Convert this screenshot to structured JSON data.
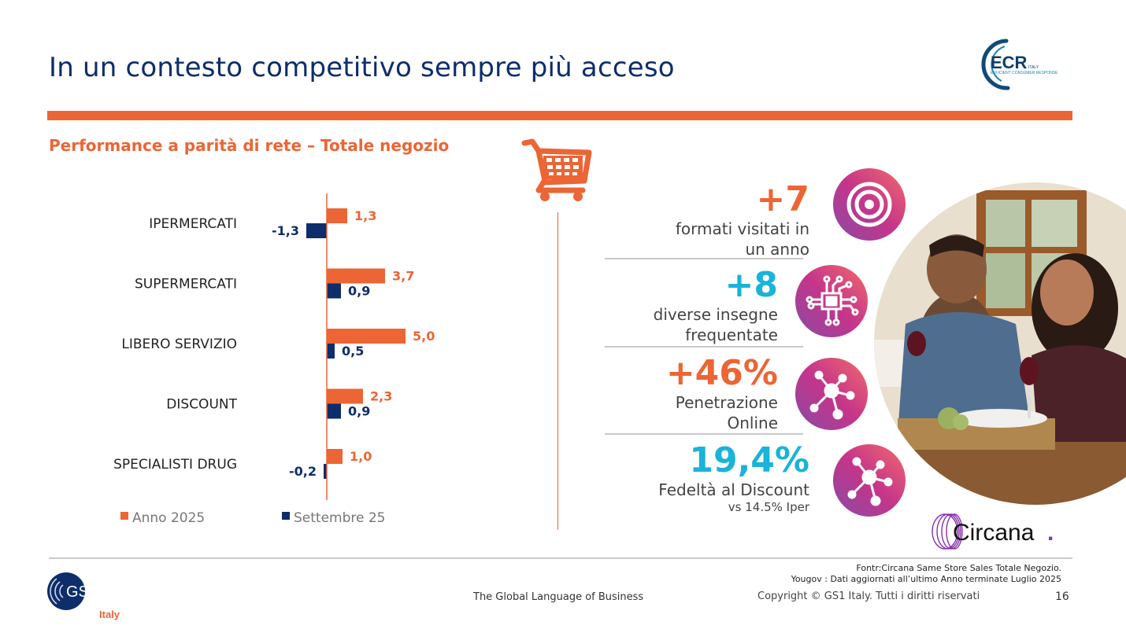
{
  "header": {
    "title": "In un contesto competitivo sempre più acceso",
    "logo_ecr": {
      "main": "ECR",
      "country": "ITALY",
      "tagline": "EFFICIENT CONSUMER RESPONSE"
    }
  },
  "subtitle": "Performance a parità di rete – Totale negozio",
  "colors": {
    "orange": "#ec6535",
    "navy": "#0d2d6b",
    "cyan": "#1ab3d9",
    "gray": "#c9c9c9"
  },
  "chart_data": {
    "type": "bar",
    "orientation": "horizontal",
    "title": "Performance a parità di rete – Totale negozio",
    "categories": [
      "IPERMERCATI",
      "SUPERMERCATI",
      "LIBERO SERVIZIO",
      "DISCOUNT",
      "SPECIALISTI DRUG"
    ],
    "series": [
      {
        "name": "Anno 2025",
        "color": "#ec6535",
        "values": [
          1.3,
          3.7,
          5.0,
          2.3,
          1.0
        ],
        "labels": [
          "1,3",
          "3,7",
          "5,0",
          "2,3",
          "1,0"
        ]
      },
      {
        "name": "Settembre 25",
        "color": "#0d2d6b",
        "values": [
          -1.3,
          0.9,
          0.5,
          0.9,
          -0.2
        ],
        "labels": [
          "-1,3",
          "0,9",
          "0,5",
          "0,9",
          "-0,2"
        ]
      }
    ],
    "xlim": [
      -2,
      5.5
    ],
    "grid": false,
    "legend": "bottom"
  },
  "kpis": [
    {
      "value": "+7",
      "color": "#ec6535",
      "desc_line1": "formati visitati in",
      "desc_line2": "un anno",
      "icon": "target-icon"
    },
    {
      "value": "+8",
      "color": "#1ab3d9",
      "desc_line1": "diverse insegne",
      "desc_line2": "frequentate",
      "icon": "circuit-chip-icon"
    },
    {
      "value": "+46%",
      "color": "#ec6535",
      "desc_line1": "Penetrazione",
      "desc_line2": "Online",
      "icon": "network-hub-icon"
    },
    {
      "value": "19,4%",
      "color": "#1ab3d9",
      "desc_line1": "Fedeltà al Discount",
      "desc_line2": "vs  14.5% Iper",
      "icon": "network-hub-icon"
    }
  ],
  "images": {
    "cart": "shopping-cart-icon",
    "photo": "couple-dining-photo"
  },
  "circana_logo": {
    "text": "Circana",
    "dot": "."
  },
  "footer": {
    "source_line1": "Fontr:Circana Same Store Sales Totale Negozio.",
    "source_line2": "Yougov : Dati aggiornati all’ultimo Anno terminate   Luglio 2025",
    "tagline": "The Global Language of Business",
    "copyright": "Copyright © GS1 Italy. Tutti i diritti riservati",
    "page_number": "16",
    "gs1_logo": {
      "text": "GS1",
      "country": "Italy"
    }
  }
}
